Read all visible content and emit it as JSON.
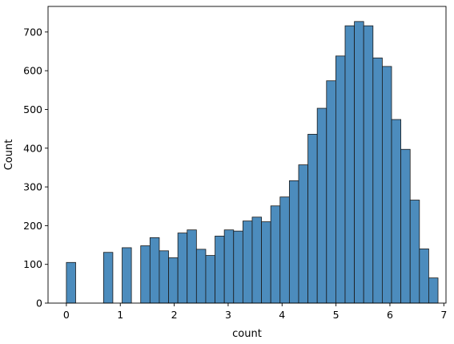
{
  "chart_data": {
    "type": "bar",
    "xlabel": "count",
    "ylabel": "Count",
    "xlim": [
      -0.34,
      7.04
    ],
    "ylim": [
      0,
      766
    ],
    "grid": false,
    "bar_color": "#4c8cbd",
    "edge_color": "#1a1a1a",
    "xticks": [
      0,
      1,
      2,
      3,
      4,
      5,
      6,
      7
    ],
    "yticks": [
      0,
      100,
      200,
      300,
      400,
      500,
      600,
      700
    ],
    "bin_width": 0.1723,
    "bin_starts": [
      0,
      0.6892,
      1.0338,
      1.3784,
      1.5507,
      1.723,
      1.8953,
      2.0676,
      2.2399,
      2.4122,
      2.5845,
      2.7568,
      2.9291,
      3.1014,
      3.2737,
      3.446,
      3.6183,
      3.7906,
      3.9629,
      4.1352,
      4.3075,
      4.4798,
      4.6521,
      4.8244,
      4.9967,
      5.169,
      5.3413,
      5.5136,
      5.6859,
      5.8582,
      6.0305,
      6.2028,
      6.3751,
      6.5474,
      6.7197
    ],
    "values": [
      105,
      131,
      143,
      148,
      169,
      135,
      117,
      181,
      189,
      139,
      123,
      173,
      189,
      186,
      212,
      222,
      210,
      251,
      274,
      316,
      357,
      436,
      503,
      574,
      638,
      716,
      727,
      716,
      633,
      611,
      474,
      397,
      266,
      140,
      65
    ]
  }
}
